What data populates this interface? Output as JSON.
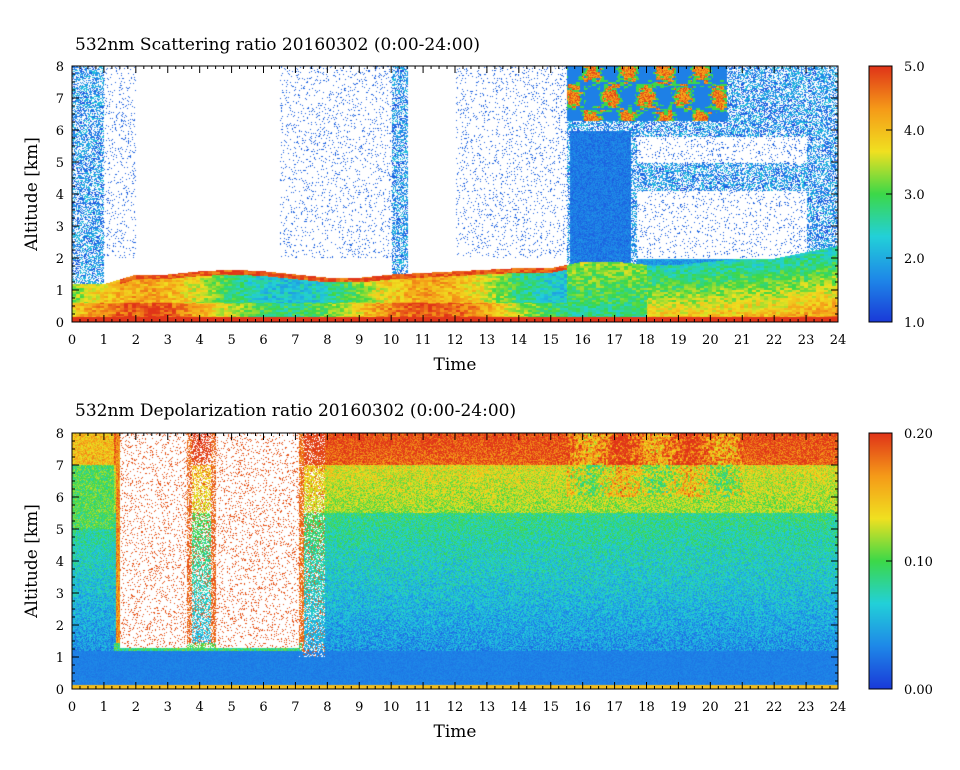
{
  "chart_data": [
    {
      "type": "heatmap",
      "title": "532nm Scattering ratio  20160302 (0:00-24:00)",
      "xlabel": "Time",
      "ylabel": "Altitude [km]",
      "x_ticks": [
        "0",
        "1",
        "2",
        "3",
        "4",
        "5",
        "6",
        "7",
        "8",
        "9",
        "10",
        "11",
        "12",
        "13",
        "14",
        "15",
        "16",
        "17",
        "18",
        "19",
        "20",
        "21",
        "22",
        "23",
        "24"
      ],
      "y_ticks": [
        "0",
        "1",
        "2",
        "3",
        "4",
        "5",
        "6",
        "7",
        "8"
      ],
      "xlim": [
        0,
        24
      ],
      "ylim": [
        0,
        8
      ],
      "colorbar": {
        "min": 1.0,
        "max": 5.0,
        "tick_labels": [
          "1.0",
          "2.0",
          "3.0",
          "4.0",
          "5.0"
        ],
        "tick_values": [
          1.0,
          2.0,
          3.0,
          4.0,
          5.0
        ]
      },
      "colormap": [
        "#1a3ad8",
        "#1e88e8",
        "#22d0d8",
        "#3cd848",
        "#f0e020",
        "#f59a18",
        "#e03418"
      ],
      "features": {
        "boundary_layer_top_km": [
          1.2,
          1.2,
          1.5,
          1.5,
          1.6,
          1.65,
          1.6,
          1.5,
          1.4,
          1.4,
          1.5,
          1.55,
          1.6,
          1.65,
          1.7,
          1.7,
          1.9,
          1.9,
          1.8,
          1.8,
          1.9,
          2.0,
          2.0,
          2.2,
          2.4
        ],
        "clear_region_hours": [
          [
            1.0,
            10.0
          ],
          [
            10.5,
            15.6
          ],
          [
            17.7,
            23.0
          ]
        ],
        "upper_cloud_hours": [
          15.5,
          20.5
        ],
        "upper_cloud_km": [
          6.3,
          8.0
        ]
      }
    },
    {
      "type": "heatmap",
      "title": "532nm Depolarization ratio  20160302 (0:00-24:00)",
      "xlabel": "Time",
      "ylabel": "Altitude [km]",
      "x_ticks": [
        "0",
        "1",
        "2",
        "3",
        "4",
        "5",
        "6",
        "7",
        "8",
        "9",
        "10",
        "11",
        "12",
        "13",
        "14",
        "15",
        "16",
        "17",
        "18",
        "19",
        "20",
        "21",
        "22",
        "23",
        "24"
      ],
      "y_ticks": [
        "0",
        "1",
        "2",
        "3",
        "4",
        "5",
        "6",
        "7",
        "8"
      ],
      "xlim": [
        0,
        24
      ],
      "ylim": [
        0,
        8
      ],
      "colorbar": {
        "min": 0.0,
        "max": 0.2,
        "tick_labels": [
          "0.00",
          "0.10",
          "0.20"
        ],
        "tick_values": [
          0.0,
          0.1,
          0.2
        ]
      },
      "colormap": [
        "#1a3ad8",
        "#1e88e8",
        "#22d0d8",
        "#3cd848",
        "#f0e020",
        "#f59a18",
        "#e03418"
      ],
      "features": {
        "masked_region_hours": [
          [
            1.5,
            3.6
          ],
          [
            4.5,
            7.1
          ]
        ],
        "masked_region_bottom_km": 1.3,
        "high_depol_upper_hours": [
          15.5,
          21.0
        ],
        "high_depol_upper_km": [
          6.0,
          8.0
        ]
      }
    }
  ]
}
